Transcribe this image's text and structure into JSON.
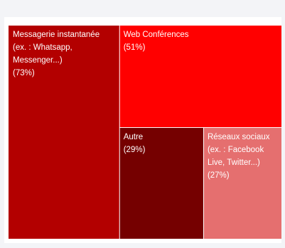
{
  "chart_data": {
    "type": "treemap",
    "items": [
      {
        "label_lines": [
          "Messagerie instantanée",
          "(ex. : Whatsapp,",
          "Messenger...)"
        ],
        "value_label": "(73%)",
        "value": 73,
        "color": "#b30000"
      },
      {
        "label_lines": [
          "Web Conférences"
        ],
        "value_label": "(51%)",
        "value": 51,
        "color": "#ff0000"
      },
      {
        "label_lines": [
          "Autre"
        ],
        "value_label": "(29%)",
        "value": 29,
        "color": "#750000"
      },
      {
        "label_lines": [
          "Réseaux sociaux",
          "(ex. : Facebook",
          "Live, Twitter...)"
        ],
        "value_label": "(27%)",
        "value": 27,
        "color": "#e56f6f"
      }
    ]
  }
}
